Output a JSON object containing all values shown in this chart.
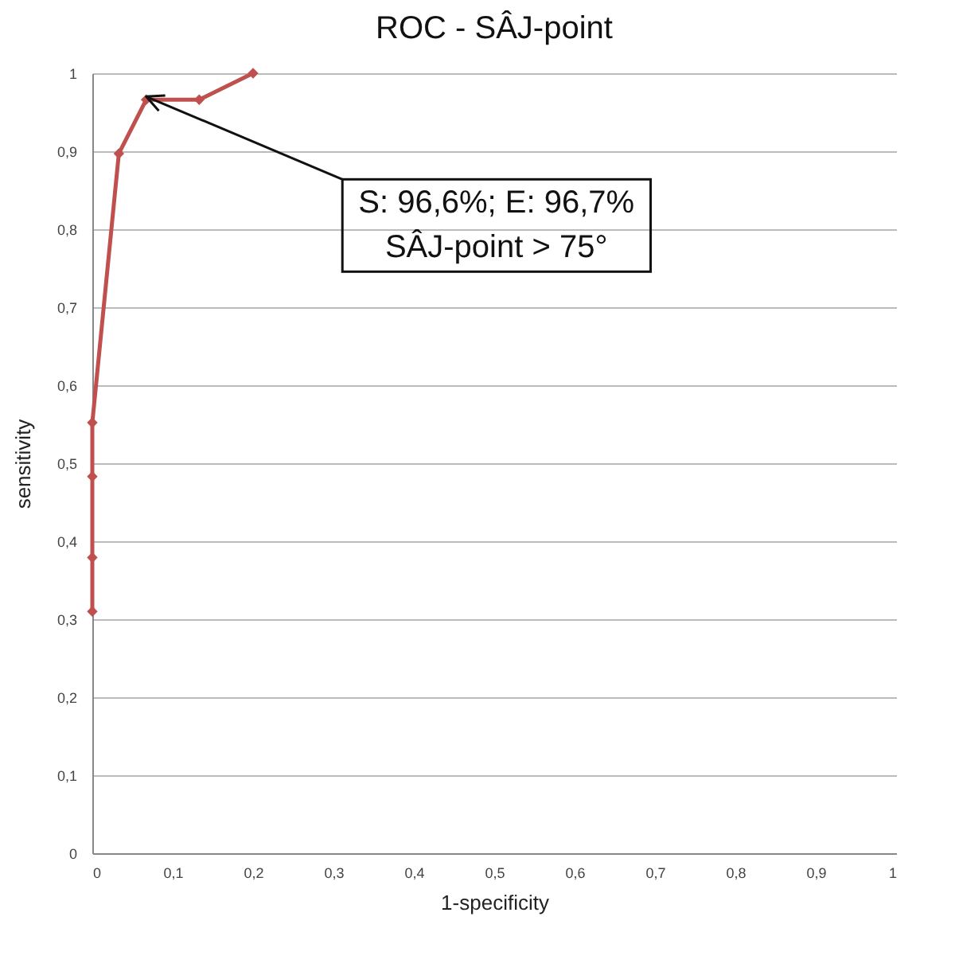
{
  "chart_data": {
    "type": "line",
    "title": "ROC - SÂJ-point",
    "xlabel": "1-specificity",
    "ylabel": "sensitivity",
    "x": [
      0,
      0,
      0,
      0,
      0.033,
      0.067,
      0.133,
      0.2
    ],
    "series": [
      {
        "color": "#c0504d",
        "values": [
          0.31,
          0.379,
          0.483,
          0.552,
          0.897,
          0.966,
          0.966,
          1
        ]
      }
    ],
    "xlim": [
      0,
      1
    ],
    "ylim": [
      0,
      1
    ],
    "xticks": [
      0,
      {
        "value": 0.1,
        "label": "0,1"
      },
      {
        "value": 0.2,
        "label": "0,2"
      },
      {
        "value": 0.3,
        "label": "0,3"
      },
      {
        "value": 0.4,
        "label": "0,4"
      },
      {
        "value": 0.5,
        "label": "0,5"
      },
      {
        "value": 0.6,
        "label": "0,6"
      },
      {
        "value": 0.7,
        "label": "0,7"
      },
      {
        "value": 0.8,
        "label": "0,8"
      },
      {
        "value": 0.9,
        "label": "0,9"
      },
      1
    ],
    "yticks": [
      0,
      {
        "value": 0.1,
        "label": "0,1"
      },
      {
        "value": 0.2,
        "label": "0,2"
      },
      {
        "value": 0.3,
        "label": "0,3"
      },
      {
        "value": 0.4,
        "label": "0,4"
      },
      {
        "value": 0.5,
        "label": "0,5"
      },
      {
        "value": 0.6,
        "label": "0,6"
      },
      {
        "value": 0.7,
        "label": "0,7"
      },
      {
        "value": 0.8,
        "label": "0,8"
      },
      {
        "value": 0.9,
        "label": "0,9"
      },
      1
    ],
    "annotations": [
      {
        "text": "S: 96,6%; E: 96,7%\nSÂJ-point > 75°",
        "x": 0.067,
        "y": 0.966
      }
    ],
    "grid": "y",
    "marker": "diamond",
    "line_style": "solid"
  }
}
